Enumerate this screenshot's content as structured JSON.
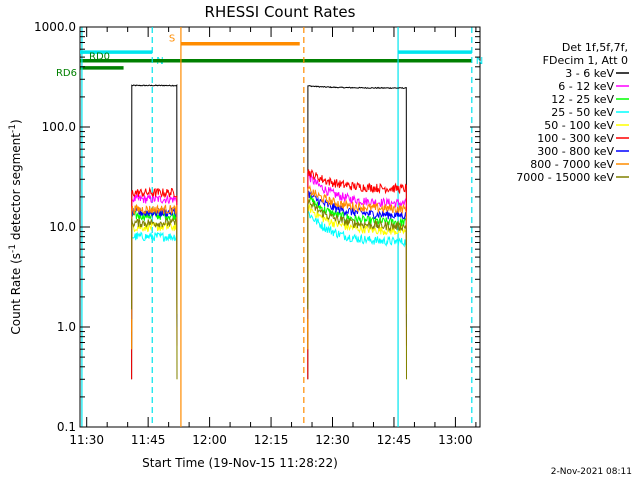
{
  "chart_data": {
    "type": "line",
    "title": "RHESSI Count Rates",
    "xlabel": "Start Time (19-Nov-15 11:28:22)",
    "ylabel_main": "Count Rate (s",
    "ylabel_sup1": "-1",
    "ylabel_mid": " detector segment",
    "ylabel_sup2": "-1",
    "ylabel_end": ")",
    "y_scale": "log",
    "ylim": [
      0.1,
      1000
    ],
    "yticks": [
      {
        "value": 1000,
        "label": "1000.0"
      },
      {
        "value": 100,
        "label": "100.0"
      },
      {
        "value": 10,
        "label": "10.0"
      },
      {
        "value": 1,
        "label": "1.0"
      },
      {
        "value": 0.1,
        "label": "0.1"
      }
    ],
    "xlim": [
      "11:28:22",
      "13:06:00"
    ],
    "xticks": [
      "11:30",
      "11:45",
      "12:00",
      "12:15",
      "12:30",
      "12:45",
      "13:00"
    ],
    "grid": false,
    "legend_header": [
      "Det 1f,5f,7f,",
      "FDecim 1, Att 0"
    ],
    "legend_position": "top-right",
    "series": [
      {
        "name": "3 - 6 keV",
        "color": "#000000",
        "segments": [
          {
            "start": "11:41:00",
            "end": "11:52:00",
            "levels": [
              260,
              260
            ]
          },
          {
            "start": "12:24:00",
            "end": "12:48:00",
            "levels": [
              258,
              245
            ]
          }
        ]
      },
      {
        "name": "6 - 12 keV",
        "color": "#ff00ff",
        "segments": [
          {
            "start": "11:41:00",
            "end": "11:52:00",
            "levels": [
              19,
              19
            ]
          },
          {
            "start": "12:24:00",
            "end": "12:48:00",
            "levels": [
              33,
              17
            ]
          }
        ]
      },
      {
        "name": "12 - 25 keV",
        "color": "#00ff00",
        "segments": [
          {
            "start": "11:41:00",
            "end": "11:52:00",
            "levels": [
              13,
              13
            ]
          },
          {
            "start": "12:24:00",
            "end": "12:48:00",
            "levels": [
              20,
              11
            ]
          }
        ]
      },
      {
        "name": "25 - 50 keV",
        "color": "#00ffff",
        "segments": [
          {
            "start": "11:41:00",
            "end": "11:52:00",
            "levels": [
              8,
              8
            ]
          },
          {
            "start": "12:24:00",
            "end": "12:48:00",
            "levels": [
              14,
              7
            ]
          }
        ]
      },
      {
        "name": "50 - 100 keV",
        "color": "#ffff00",
        "segments": [
          {
            "start": "11:41:00",
            "end": "11:52:00",
            "levels": [
              10,
              10
            ]
          },
          {
            "start": "12:24:00",
            "end": "12:48:00",
            "levels": [
              16,
              9
            ]
          }
        ]
      },
      {
        "name": "100 - 300 keV",
        "color": "#ff0000",
        "segments": [
          {
            "start": "11:41:00",
            "end": "11:52:00",
            "levels": [
              22,
              22
            ]
          },
          {
            "start": "12:24:00",
            "end": "12:48:00",
            "levels": [
              36,
              24
            ]
          }
        ]
      },
      {
        "name": "300 - 800 keV",
        "color": "#0000ff",
        "segments": [
          {
            "start": "11:41:00",
            "end": "11:52:00",
            "levels": [
              14,
              14
            ]
          },
          {
            "start": "12:24:00",
            "end": "12:48:00",
            "levels": [
              22,
              13
            ]
          }
        ]
      },
      {
        "name": "800 - 7000 keV",
        "color": "#ff8c00",
        "segments": [
          {
            "start": "11:41:00",
            "end": "11:52:00",
            "levels": [
              15,
              15
            ]
          },
          {
            "start": "12:24:00",
            "end": "12:48:00",
            "levels": [
              24,
              15
            ]
          }
        ]
      },
      {
        "name": "7000 - 15000 keV",
        "color": "#808000",
        "segments": [
          {
            "start": "11:41:00",
            "end": "11:52:00",
            "levels": [
              11,
              11
            ]
          },
          {
            "start": "12:24:00",
            "end": "12:48:00",
            "levels": [
              18,
              10
            ]
          }
        ]
      }
    ],
    "flags": [
      {
        "label": "N",
        "color": "#00e5ee",
        "start": "11:28:22",
        "end": "11:46:00",
        "level": 560
      },
      {
        "label": "N",
        "color": "#00e5ee",
        "start": "12:46:00",
        "end": "13:04:00",
        "level": 560
      },
      {
        "label": "S",
        "color": "#ff8c00",
        "start": "11:53:00",
        "end": "12:22:00",
        "level": 680
      },
      {
        "label": "RD0",
        "color": "#008000",
        "start": "11:28:22",
        "end": "13:04:00",
        "level": 460
      },
      {
        "label": "RD6",
        "color": "#008000",
        "start": "11:28:22",
        "end": "11:39:00",
        "level": 390
      }
    ],
    "vlines": [
      {
        "time": "11:28:50",
        "color": "#00e5ee",
        "style": "solid"
      },
      {
        "time": "11:46:00",
        "color": "#00e5ee",
        "style": "dashed"
      },
      {
        "time": "11:53:00",
        "color": "#ff8c00",
        "style": "solid"
      },
      {
        "time": "12:23:00",
        "color": "#ff8c00",
        "style": "dashed"
      },
      {
        "time": "12:46:00",
        "color": "#00e5ee",
        "style": "solid"
      },
      {
        "time": "13:04:00",
        "color": "#00e5ee",
        "style": "dashed"
      }
    ]
  },
  "footer": {
    "timestamp": "2-Nov-2021 08:11"
  }
}
